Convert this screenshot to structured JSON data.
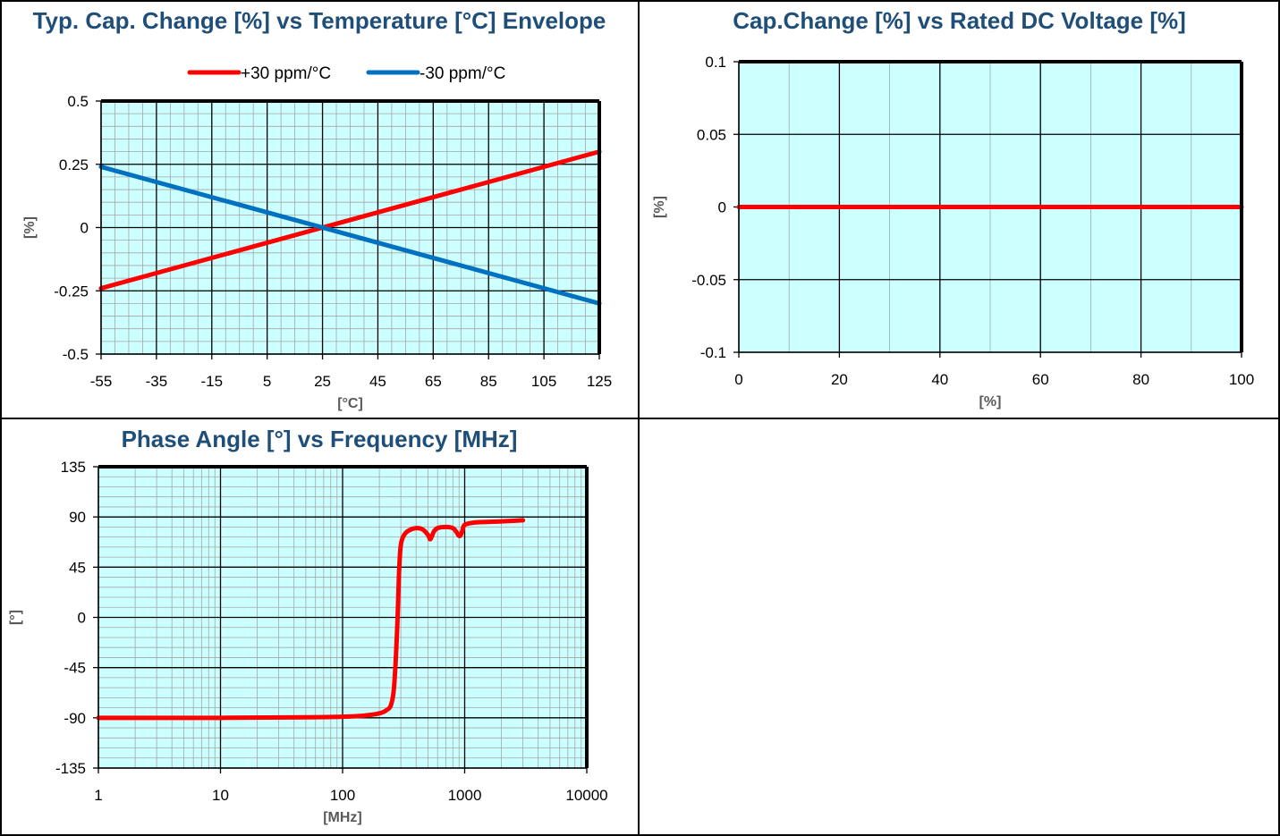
{
  "colors": {
    "plot_background": "#ccffff",
    "major_grid": "#000000",
    "minor_grid": "#a6a6a6",
    "title_color": "#1f4e79",
    "series_red": "#ff0000",
    "series_blue": "#0070c0",
    "axis_label_color": "#595959"
  },
  "chart_data": [
    {
      "id": "temp",
      "type": "line",
      "title": "Typ. Cap. Change [%] vs Temperature [°C] Envelope",
      "xlabel": "[°C]",
      "ylabel": "[%]",
      "xlim": [
        -55,
        125
      ],
      "ylim": [
        -0.5,
        0.5
      ],
      "xticks": [
        -55,
        -35,
        -15,
        5,
        25,
        45,
        65,
        85,
        105,
        125
      ],
      "yticks": [
        -0.5,
        -0.25,
        0,
        0.25,
        0.5
      ],
      "xtick_labels": [
        "-55",
        "-35",
        "-15",
        "5",
        "25",
        "45",
        "65",
        "85",
        "105",
        "125"
      ],
      "ytick_labels": [
        "-0.5",
        "-0.25",
        "0",
        "0.25",
        "0.5"
      ],
      "grid": true,
      "legend": "top",
      "series": [
        {
          "name": "+30 ppm/°C",
          "color": "#ff0000",
          "x": [
            -55,
            125
          ],
          "y": [
            -0.24,
            0.3
          ]
        },
        {
          "name": "-30 ppm/°C",
          "color": "#0070c0",
          "x": [
            -55,
            125
          ],
          "y": [
            0.24,
            -0.3
          ]
        }
      ]
    },
    {
      "id": "volt",
      "type": "line",
      "title": "Cap.Change [%] vs Rated DC Voltage [%]",
      "xlabel": "[%]",
      "ylabel": "[%]",
      "xlim": [
        0,
        100
      ],
      "ylim": [
        -0.1,
        0.1
      ],
      "xticks": [
        0,
        20,
        40,
        60,
        80,
        100
      ],
      "yticks": [
        -0.1,
        -0.05,
        0,
        0.05,
        0.1
      ],
      "xtick_labels": [
        "0",
        "20",
        "40",
        "60",
        "80",
        "100"
      ],
      "ytick_labels": [
        "-0.1",
        "-0.05",
        "0",
        "0.05",
        "0.1"
      ],
      "grid": true,
      "series": [
        {
          "color": "#ff0000",
          "x": [
            0,
            100
          ],
          "y": [
            0,
            0
          ]
        }
      ]
    },
    {
      "id": "phase",
      "type": "line",
      "title": "Phase Angle [°] vs Frequency [MHz]",
      "xlabel": "[MHz]",
      "ylabel": "[°]",
      "xscale": "log",
      "xlim": [
        1,
        10000
      ],
      "ylim": [
        -135,
        135
      ],
      "xticks": [
        1,
        10,
        100,
        1000,
        10000
      ],
      "yticks": [
        -135,
        -90,
        -45,
        0,
        45,
        90,
        135
      ],
      "xtick_labels": [
        "1",
        "10",
        "100",
        "1000",
        "10000"
      ],
      "ytick_labels": [
        "-135",
        "-90",
        "-45",
        "0",
        "45",
        "90",
        "135"
      ],
      "grid": true,
      "series": [
        {
          "color": "#ff0000",
          "x": [
            1,
            10,
            50,
            100,
            150,
            200,
            230,
            250,
            265,
            280,
            290,
            300,
            320,
            350,
            400,
            450,
            500,
            520,
            540,
            560,
            600,
            700,
            800,
            850,
            900,
            930,
            960,
            1000,
            1200,
            1500,
            2000,
            3000
          ],
          "y": [
            -90,
            -90,
            -89.5,
            -89,
            -88,
            -86,
            -83,
            -78,
            -60,
            -10,
            40,
            65,
            74,
            78,
            80,
            79,
            74,
            70,
            73,
            77,
            80,
            81,
            80,
            77,
            73,
            74,
            78,
            83,
            85,
            85.5,
            86,
            87
          ]
        }
      ]
    }
  ]
}
